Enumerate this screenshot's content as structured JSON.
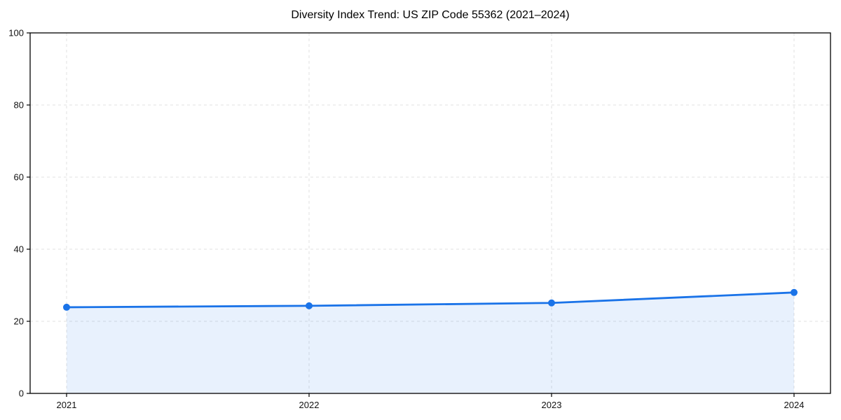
{
  "chart_data": {
    "type": "line",
    "title": "Diversity Index Trend: US ZIP Code 55362 (2021–2024)",
    "xlabel": "",
    "ylabel": "",
    "x": [
      2021,
      2022,
      2023,
      2024
    ],
    "x_tick_labels": [
      "2021",
      "2022",
      "2023",
      "2024"
    ],
    "series": [
      {
        "name": "Diversity Index",
        "values": [
          23.9,
          24.3,
          25.1,
          28.0
        ]
      }
    ],
    "ylim": [
      0,
      100
    ],
    "yticks": [
      0,
      20,
      40,
      60,
      80,
      100
    ],
    "y_tick_labels": [
      "0",
      "20",
      "40",
      "60",
      "80",
      "100"
    ],
    "grid": true,
    "grid_style": "dashed",
    "legend_position": "none",
    "line_color": "#1a73e8",
    "marker": "circle",
    "fill_color": "#1a73e8",
    "fill_opacity": 0.1,
    "grid_color": "#e0e0e0",
    "axis_color": "#000000",
    "tick_label_color": "#111111",
    "background_color": "#ffffff"
  }
}
